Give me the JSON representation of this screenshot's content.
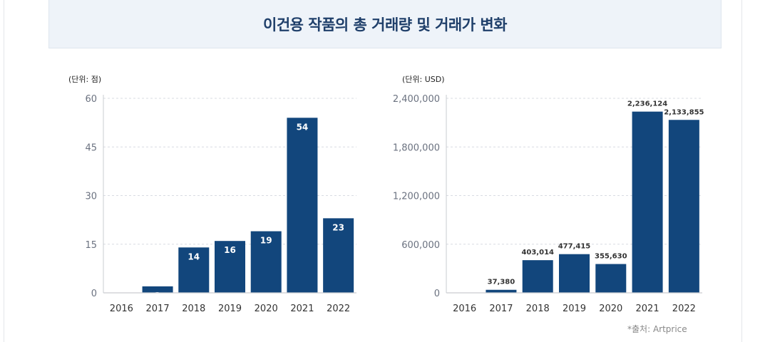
{
  "header": {
    "title": "이건용 작품의 총 거래량 및 거래가 변화"
  },
  "colors": {
    "bar": "#12467c",
    "grid": "#d8dce2",
    "axis": "#c9ccd1",
    "header_bg": "#eef3f9",
    "title": "#1f3f6a"
  },
  "chart_data": [
    {
      "type": "bar",
      "unit_label": "(단위: 점)",
      "categories": [
        "2016",
        "2017",
        "2018",
        "2019",
        "2020",
        "2021",
        "2022"
      ],
      "values": [
        0,
        2,
        14,
        16,
        19,
        54,
        23
      ],
      "labels": [
        "",
        "2",
        "14",
        "16",
        "19",
        "54",
        "23"
      ],
      "ylim": [
        0,
        60
      ],
      "yticks": [
        "0",
        "15",
        "30",
        "45",
        "60"
      ],
      "ytick_values": [
        0,
        15,
        30,
        45,
        60
      ],
      "grid": true
    },
    {
      "type": "bar",
      "unit_label": "(단위: USD)",
      "categories": [
        "2016",
        "2017",
        "2018",
        "2019",
        "2020",
        "2021",
        "2022"
      ],
      "values": [
        0,
        37380,
        403014,
        477415,
        355630,
        2236124,
        2133855
      ],
      "labels": [
        "",
        "37,380",
        "403,014",
        "477,415",
        "355,630",
        "2,236,124",
        "2,133,855"
      ],
      "ylim": [
        0,
        2400000
      ],
      "yticks": [
        "0",
        "600,000",
        "1,200,000",
        "1,800,000",
        "2,400,000"
      ],
      "ytick_values": [
        0,
        600000,
        1200000,
        1800000,
        2400000
      ],
      "grid": true
    }
  ],
  "source": "*출처: Artprice"
}
